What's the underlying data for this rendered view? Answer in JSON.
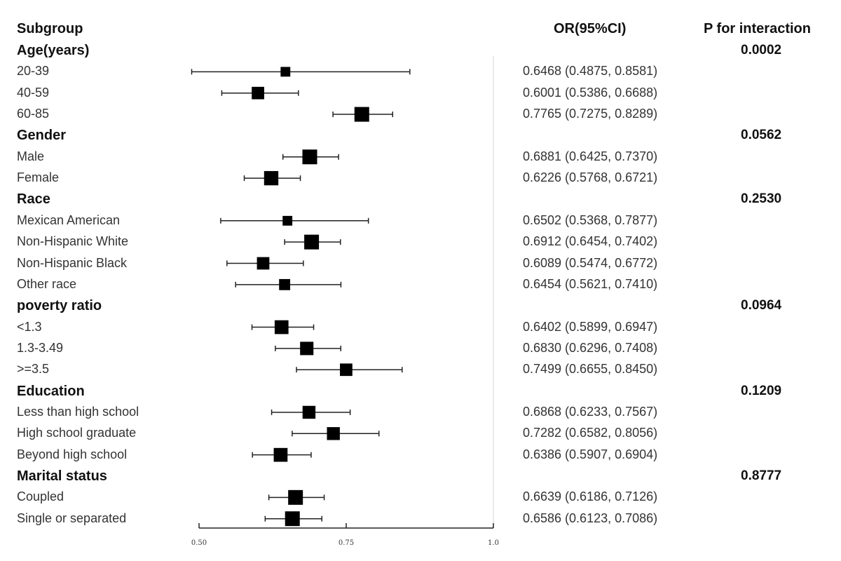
{
  "chart_data": {
    "type": "forest",
    "title": "",
    "columns": {
      "subgroup": "Subgroup",
      "or_ci": "OR(95%CI)",
      "p_interaction": "P for interaction"
    },
    "xaxis": {
      "ticks": [
        0.5,
        0.75,
        1.0
      ],
      "tick_labels": [
        "0.50",
        "0.75",
        "1.0"
      ],
      "range": [
        0.5,
        1.0
      ],
      "reference_line": 1.0
    },
    "groups": [
      {
        "name": "Age(years)",
        "p": "0.0002",
        "rows": [
          {
            "label": "20-39",
            "or": 0.6468,
            "lo": 0.4875,
            "hi": 0.8581,
            "text": "0.6468 (0.4875, 0.8581)",
            "weight": 0.45
          },
          {
            "label": "40-59",
            "or": 0.6001,
            "lo": 0.5386,
            "hi": 0.6688,
            "text": "0.6001 (0.5386, 0.6688)",
            "weight": 0.75
          },
          {
            "label": "60-85",
            "or": 0.7765,
            "lo": 0.7275,
            "hi": 0.8289,
            "text": "0.7765 (0.7275, 0.8289)",
            "weight": 1.0
          }
        ]
      },
      {
        "name": "Gender",
        "p": "0.0562",
        "rows": [
          {
            "label": "Male",
            "or": 0.6881,
            "lo": 0.6425,
            "hi": 0.737,
            "text": "0.6881 (0.6425, 0.7370)",
            "weight": 1.0
          },
          {
            "label": "Female",
            "or": 0.6226,
            "lo": 0.5768,
            "hi": 0.6721,
            "text": "0.6226 (0.5768, 0.6721)",
            "weight": 0.95
          }
        ]
      },
      {
        "name": "Race",
        "p": "0.2530",
        "rows": [
          {
            "label": "Mexican American",
            "or": 0.6502,
            "lo": 0.5368,
            "hi": 0.7877,
            "text": "0.6502 (0.5368, 0.7877)",
            "weight": 0.45
          },
          {
            "label": "Non-Hispanic White",
            "or": 0.6912,
            "lo": 0.6454,
            "hi": 0.7402,
            "text": "0.6912 (0.6454, 0.7402)",
            "weight": 1.0
          },
          {
            "label": "Non-Hispanic Black",
            "or": 0.6089,
            "lo": 0.5474,
            "hi": 0.6772,
            "text": "0.6089 (0.5474, 0.6772)",
            "weight": 0.75
          },
          {
            "label": "Other race",
            "or": 0.6454,
            "lo": 0.5621,
            "hi": 0.741,
            "text": "0.6454 (0.5621, 0.7410)",
            "weight": 0.6
          }
        ]
      },
      {
        "name": "poverty ratio",
        "p": "0.0964",
        "rows": [
          {
            "label": "<1.3",
            "or": 0.6402,
            "lo": 0.5899,
            "hi": 0.6947,
            "text": "0.6402 (0.5899, 0.6947)",
            "weight": 0.9
          },
          {
            "label": "1.3-3.49",
            "or": 0.683,
            "lo": 0.6296,
            "hi": 0.7408,
            "text": "0.6830 (0.6296, 0.7408)",
            "weight": 0.85
          },
          {
            "label": ">=3.5",
            "or": 0.7499,
            "lo": 0.6655,
            "hi": 0.845,
            "text": "0.7499 (0.6655, 0.8450)",
            "weight": 0.75
          }
        ]
      },
      {
        "name": "Education",
        "p": "0.1209",
        "rows": [
          {
            "label": "Less than high school",
            "or": 0.6868,
            "lo": 0.6233,
            "hi": 0.7567,
            "text": "0.6868 (0.6233, 0.7567)",
            "weight": 0.8
          },
          {
            "label": "High school graduate",
            "or": 0.7282,
            "lo": 0.6582,
            "hi": 0.8056,
            "text": "0.7282 (0.6582, 0.8056)",
            "weight": 0.8
          },
          {
            "label": "Beyond high school",
            "or": 0.6386,
            "lo": 0.5907,
            "hi": 0.6904,
            "text": "0.6386 (0.5907, 0.6904)",
            "weight": 0.9
          }
        ]
      },
      {
        "name": "Marital status",
        "p": "0.8777",
        "rows": [
          {
            "label": "Coupled",
            "or": 0.6639,
            "lo": 0.6186,
            "hi": 0.7126,
            "text": "0.6639 (0.6186, 0.7126)",
            "weight": 1.0
          },
          {
            "label": "Single or separated",
            "or": 0.6586,
            "lo": 0.6123,
            "hi": 0.7086,
            "text": "0.6586 (0.6123, 0.7086)",
            "weight": 1.0
          }
        ]
      }
    ]
  }
}
